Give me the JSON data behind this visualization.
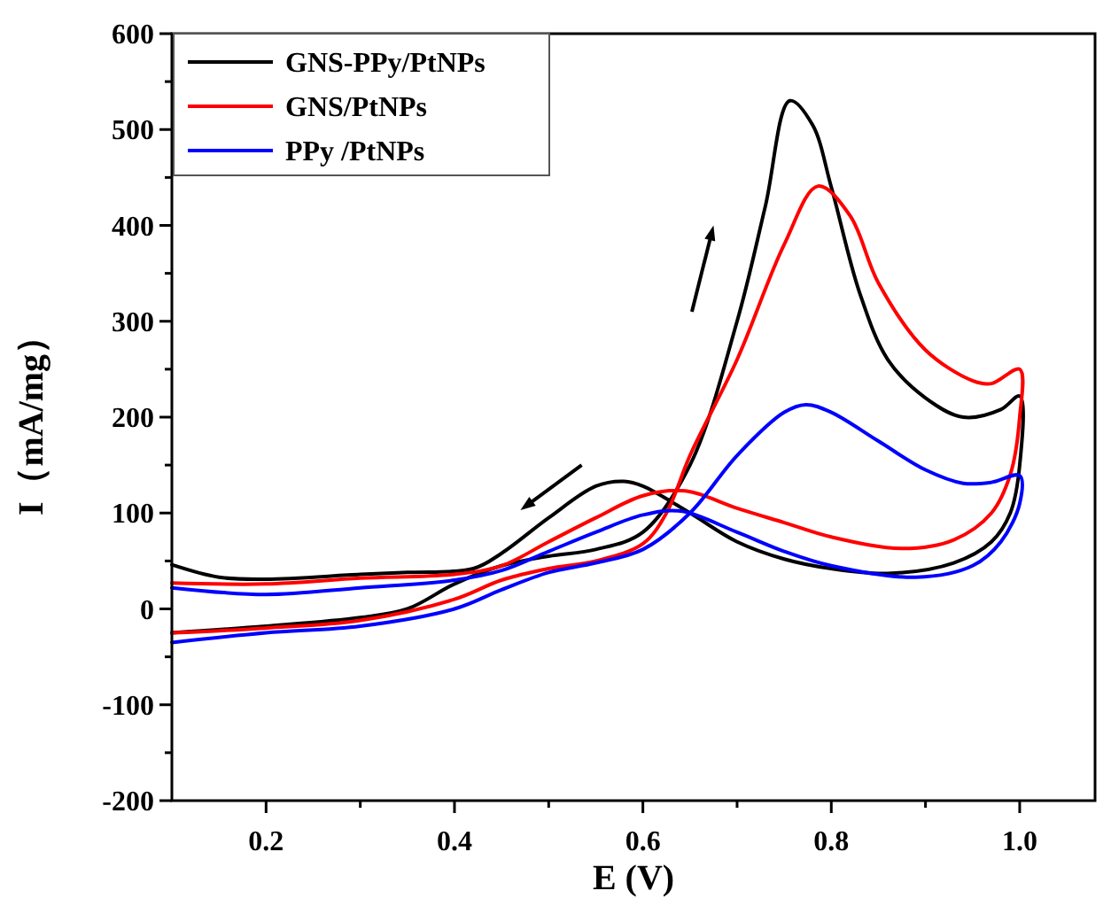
{
  "chart_data": {
    "type": "line",
    "xlabel": "E (V)",
    "ylabel": "I（mA/mg）",
    "xlim": [
      0.1,
      1.08
    ],
    "ylim": [
      -200,
      600
    ],
    "xticks": [
      0.2,
      {
        "value": 0.3,
        "label": null
      },
      0.4,
      {
        "value": 0.5,
        "label": null
      },
      0.6,
      {
        "value": 0.7,
        "label": null
      },
      0.8,
      {
        "value": 0.9,
        "label": null
      },
      {
        "value": 1.0,
        "label": "1.0"
      }
    ],
    "yticks": [
      -200,
      {
        "value": -150,
        "label": null
      },
      -100,
      {
        "value": -50,
        "label": null
      },
      0,
      {
        "value": 50,
        "label": null
      },
      100,
      {
        "value": 150,
        "label": null
      },
      200,
      {
        "value": 250,
        "label": null
      },
      300,
      {
        "value": 350,
        "label": null
      },
      400,
      {
        "value": 450,
        "label": null
      },
      500,
      {
        "value": 550,
        "label": null
      },
      600
    ],
    "legend": "top left",
    "grid": false,
    "marker": "none",
    "line_style": "solid",
    "series": [
      {
        "name": "GNS-PPy/PtNPs",
        "color": "#000000",
        "x": [
          0.1,
          0.2,
          0.3,
          0.35,
          0.4,
          0.45,
          0.5,
          0.55,
          0.6,
          0.65,
          0.7,
          0.73,
          0.756,
          0.78,
          0.8,
          0.83,
          0.86,
          0.9,
          0.94,
          0.98,
          1.0,
          1.0,
          0.99,
          0.97,
          0.93,
          0.86,
          0.8,
          0.75,
          0.7,
          0.65,
          0.6,
          0.58,
          0.55,
          0.5,
          0.45,
          0.42,
          0.35,
          0.3,
          0.2,
          0.15,
          0.1
        ],
        "values": [
          -25,
          -18,
          -9,
          0,
          26,
          45,
          55,
          62,
          80,
          150,
          300,
          420,
          530,
          505,
          440,
          330,
          260,
          220,
          200,
          208,
          222,
          150,
          100,
          70,
          48,
          37,
          42,
          52,
          70,
          100,
          128,
          133,
          128,
          95,
          58,
          42,
          38,
          36,
          31,
          33,
          46
        ]
      },
      {
        "name": "GNS/PtNPs",
        "color": "#ff0000",
        "x": [
          0.1,
          0.2,
          0.3,
          0.4,
          0.45,
          0.5,
          0.55,
          0.6,
          0.625,
          0.65,
          0.7,
          0.75,
          0.786,
          0.82,
          0.85,
          0.9,
          0.95,
          0.97,
          1.0,
          1.0,
          0.99,
          0.97,
          0.93,
          0.876,
          0.8,
          0.75,
          0.7,
          0.645,
          0.6,
          0.55,
          0.5,
          0.45,
          0.4,
          0.3,
          0.2,
          0.1
        ],
        "values": [
          -25,
          -20,
          -12,
          10,
          30,
          42,
          50,
          68,
          100,
          160,
          260,
          380,
          441,
          410,
          340,
          270,
          238,
          235,
          250,
          200,
          140,
          100,
          72,
          63,
          75,
          90,
          105,
          123,
          118,
          95,
          70,
          45,
          36,
          32,
          26,
          27
        ]
      },
      {
        "name": "PPy /PtNPs",
        "color": "#0000ff",
        "x": [
          0.1,
          0.2,
          0.3,
          0.4,
          0.45,
          0.5,
          0.55,
          0.6,
          0.65,
          0.7,
          0.75,
          0.773,
          0.8,
          0.85,
          0.9,
          0.94,
          0.97,
          1.0,
          1.0,
          0.98,
          0.95,
          0.89,
          0.8,
          0.75,
          0.7,
          0.64,
          0.6,
          0.55,
          0.5,
          0.45,
          0.4,
          0.3,
          0.2,
          0.1
        ],
        "values": [
          -35,
          -25,
          -18,
          0,
          20,
          38,
          48,
          62,
          100,
          160,
          205,
          213,
          205,
          175,
          145,
          131,
          132,
          139,
          110,
          70,
          45,
          33,
          45,
          60,
          80,
          102,
          98,
          80,
          60,
          40,
          30,
          22,
          15,
          22
        ]
      }
    ]
  }
}
